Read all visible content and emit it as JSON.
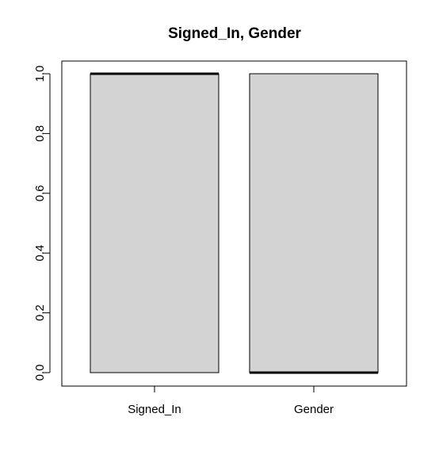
{
  "chart_data": {
    "type": "boxplot",
    "title": "Signed_In, Gender",
    "xlabel": "",
    "ylabel": "",
    "ylim": [
      0.0,
      1.0
    ],
    "y_ticks": [
      "0.0",
      "0.2",
      "0.4",
      "0.6",
      "0.8",
      "1.0"
    ],
    "y_tick_values": [
      0.0,
      0.2,
      0.4,
      0.6,
      0.8,
      1.0
    ],
    "categories": [
      "Signed_In",
      "Gender"
    ],
    "series": [
      {
        "category": "Signed_In",
        "min": 0,
        "q1": 0,
        "median": 1,
        "q3": 1,
        "max": 1
      },
      {
        "category": "Gender",
        "min": 0,
        "q1": 0,
        "median": 0,
        "q3": 1,
        "max": 1
      }
    ],
    "grid": false,
    "colors": {
      "box_fill": "#d3d3d3",
      "stroke": "#000000",
      "background": "#ffffff"
    }
  }
}
